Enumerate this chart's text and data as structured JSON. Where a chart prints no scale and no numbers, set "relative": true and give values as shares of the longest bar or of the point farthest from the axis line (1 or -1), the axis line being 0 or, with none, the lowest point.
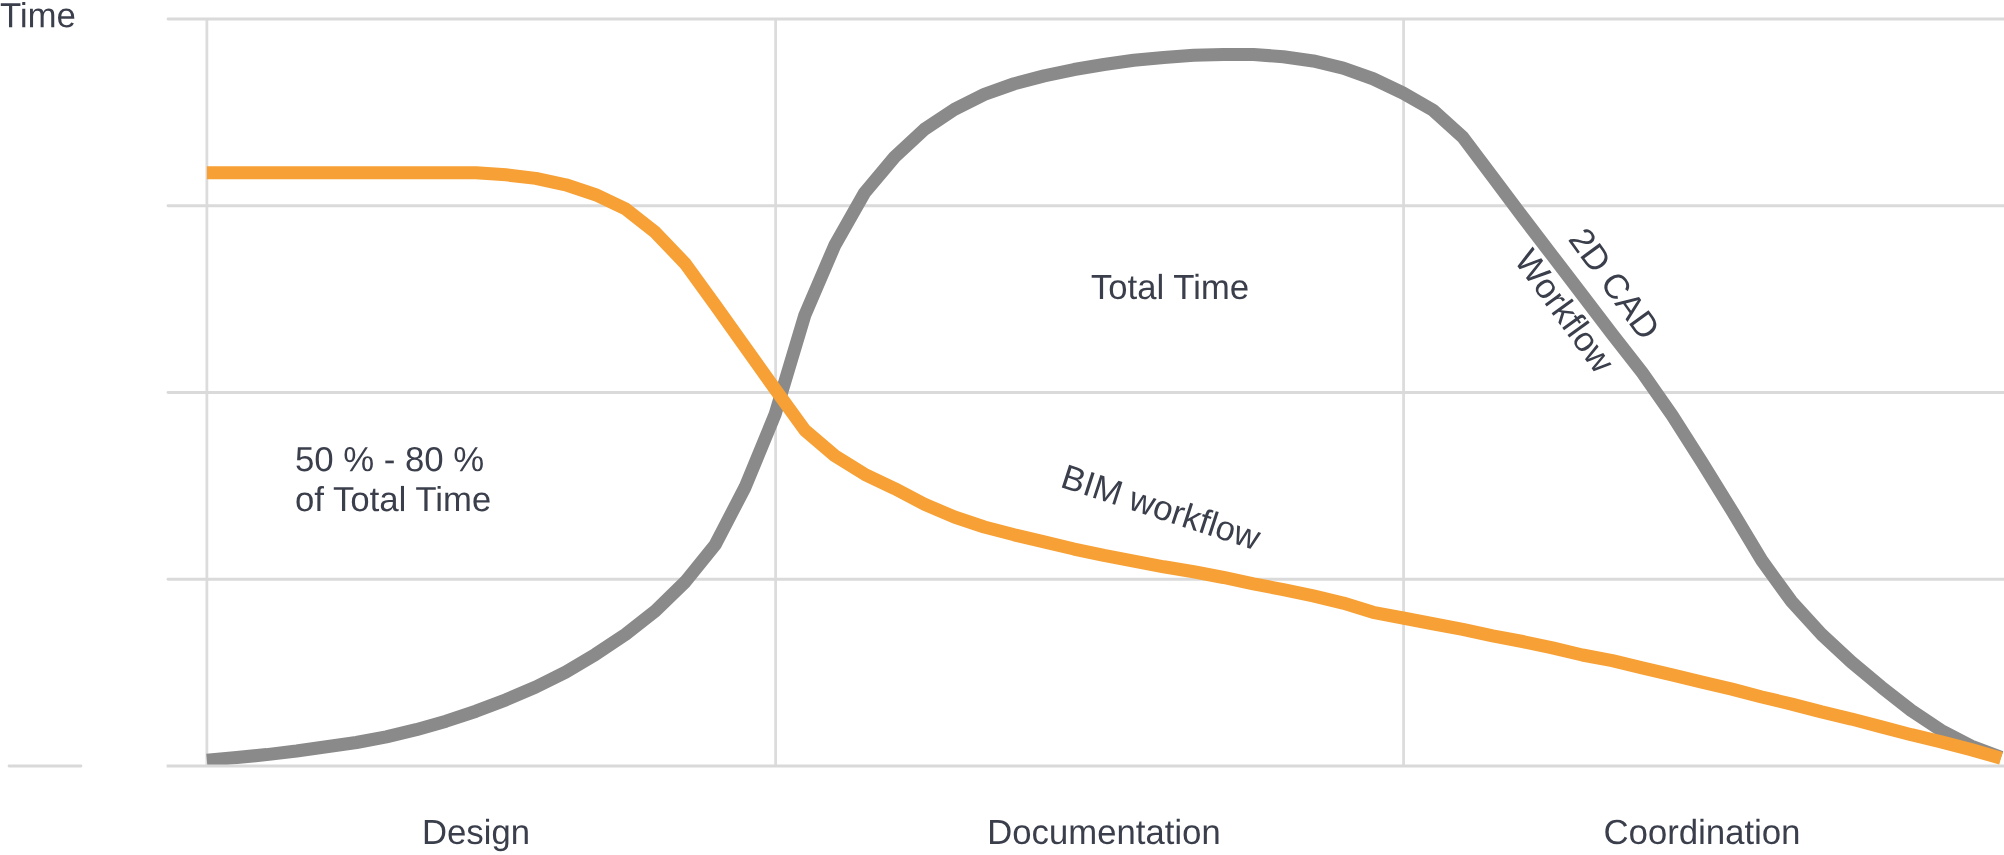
{
  "chart_data": {
    "type": "line",
    "relative": true,
    "ylabel": "Time",
    "grid": true,
    "categories": [
      null,
      null,
      null,
      null,
      null,
      null,
      null,
      null,
      null,
      "Design",
      null,
      null,
      null,
      null,
      null,
      null,
      null,
      null,
      null,
      null,
      null,
      null,
      null,
      null,
      null,
      null,
      null,
      null,
      null,
      null,
      "Documentation",
      null,
      null,
      null,
      null,
      null,
      null,
      null,
      null,
      null,
      null,
      null,
      null,
      null,
      null,
      null,
      null,
      null,
      null,
      null,
      "Coordination",
      null,
      null,
      null,
      null,
      null,
      null,
      null,
      null,
      null,
      null
    ],
    "series": [
      {
        "name": "2D CAD\nWorkflow",
        "color": "#8a8a8a",
        "values": [
          0.008,
          0.012,
          0.016,
          0.021,
          0.027,
          0.033,
          0.041,
          0.051,
          0.063,
          0.077,
          0.093,
          0.111,
          0.132,
          0.157,
          0.185,
          0.218,
          0.259,
          0.311,
          0.392,
          0.494,
          0.634,
          0.732,
          0.806,
          0.856,
          0.895,
          0.923,
          0.944,
          0.959,
          0.97,
          0.979,
          0.986,
          0.992,
          0.996,
          0.999,
          1.0,
          1.0,
          0.997,
          0.991,
          0.981,
          0.966,
          0.946,
          0.922,
          0.884,
          0.828,
          0.772,
          0.717,
          0.662,
          0.607,
          0.553,
          0.493,
          0.427,
          0.359,
          0.289,
          0.231,
          0.185,
          0.146,
          0.111,
          0.078,
          0.05,
          0.028,
          0.012
        ]
      },
      {
        "name": "BIM workflow",
        "color": "#f7a035",
        "values": [
          0.834,
          0.834,
          0.834,
          0.834,
          0.834,
          0.834,
          0.834,
          0.834,
          0.834,
          0.834,
          0.831,
          0.826,
          0.817,
          0.803,
          0.783,
          0.75,
          0.706,
          0.648,
          0.589,
          0.53,
          0.472,
          0.436,
          0.41,
          0.39,
          0.368,
          0.35,
          0.336,
          0.325,
          0.315,
          0.305,
          0.296,
          0.288,
          0.28,
          0.273,
          0.265,
          0.256,
          0.248,
          0.239,
          0.229,
          0.216,
          0.208,
          0.2,
          0.192,
          0.183,
          0.175,
          0.166,
          0.156,
          0.148,
          0.138,
          0.128,
          0.118,
          0.108,
          0.097,
          0.087,
          0.076,
          0.066,
          0.055,
          0.044,
          0.034,
          0.023,
          0.011
        ]
      }
    ],
    "annotations": [
      "Total Time",
      "50 % - 80 %\nof Total Time"
    ]
  }
}
